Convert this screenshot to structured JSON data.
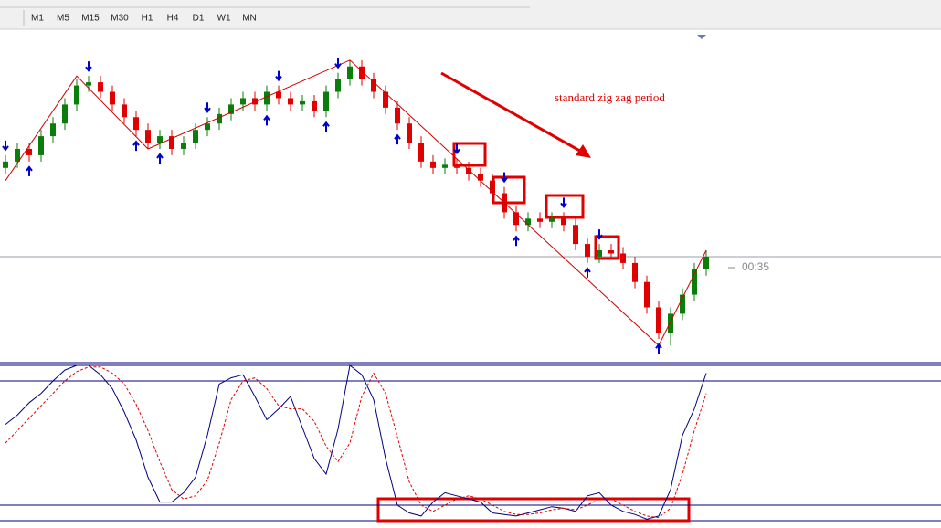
{
  "toolbar": {
    "timeframes": [
      "M1",
      "M5",
      "M15",
      "M30",
      "H1",
      "H4",
      "D1",
      "W1",
      "MN"
    ]
  },
  "annotation": "standard zig zag period",
  "timer": "00:35",
  "chart_data": [
    {
      "type": "candlestick",
      "ylim": [
        0,
        100
      ],
      "up_color": "#0b7d0b",
      "down_color": "#e10000",
      "open": [
        60,
        62,
        66,
        64,
        70,
        74,
        80,
        86,
        87,
        84,
        80,
        76,
        72,
        68,
        70,
        66,
        68,
        72,
        74,
        77,
        80,
        82,
        80,
        84,
        82,
        80,
        81,
        78,
        84,
        88,
        92,
        88,
        84,
        79,
        74,
        68,
        62,
        60,
        61,
        60,
        58,
        56,
        52,
        46,
        42,
        44,
        43,
        44,
        42,
        36,
        32,
        34,
        33,
        30,
        24,
        16,
        8,
        14,
        20,
        28
      ],
      "high": [
        64,
        68,
        68,
        72,
        76,
        82,
        88,
        89,
        89,
        86,
        82,
        78,
        74,
        72,
        72,
        70,
        74,
        76,
        79,
        82,
        84,
        84,
        86,
        86,
        84,
        83,
        83,
        86,
        90,
        94,
        94,
        90,
        86,
        81,
        76,
        70,
        64,
        63,
        63,
        62,
        60,
        58,
        54,
        48,
        46,
        46,
        46,
        46,
        44,
        38,
        36,
        36,
        35,
        32,
        26,
        18,
        16,
        22,
        30,
        34
      ],
      "low": [
        58,
        60,
        62,
        62,
        68,
        72,
        78,
        84,
        82,
        78,
        74,
        70,
        66,
        66,
        64,
        64,
        66,
        70,
        72,
        75,
        78,
        78,
        78,
        80,
        78,
        78,
        76,
        76,
        82,
        86,
        86,
        82,
        77,
        72,
        66,
        60,
        58,
        58,
        58,
        56,
        54,
        50,
        44,
        40,
        40,
        41,
        41,
        40,
        34,
        30,
        30,
        31,
        28,
        22,
        14,
        6,
        4,
        12,
        18,
        26
      ],
      "close": [
        62,
        66,
        64,
        70,
        74,
        80,
        86,
        87,
        84,
        80,
        76,
        72,
        68,
        70,
        66,
        68,
        72,
        74,
        77,
        80,
        82,
        80,
        84,
        82,
        80,
        81,
        78,
        84,
        88,
        92,
        88,
        84,
        79,
        74,
        68,
        62,
        60,
        61,
        60,
        58,
        56,
        52,
        46,
        42,
        44,
        43,
        44,
        42,
        36,
        32,
        34,
        33,
        30,
        24,
        16,
        8,
        14,
        20,
        28,
        32
      ],
      "zigzag": {
        "color": "#d00000",
        "x": [
          0,
          6,
          12,
          29,
          55,
          59
        ],
        "values": [
          56,
          89,
          66,
          94,
          4,
          34
        ]
      },
      "signals": {
        "color": "#0000cc",
        "down": [
          0,
          7,
          17,
          23,
          28,
          38,
          42,
          47,
          50
        ],
        "up": [
          2,
          11,
          13,
          22,
          27,
          33,
          43,
          49,
          55
        ]
      }
    },
    {
      "type": "stochastic",
      "ylim": [
        0,
        100
      ],
      "levels": [
        90,
        10
      ],
      "series": [
        {
          "color": "#000080",
          "values": [
            62,
            68,
            76,
            82,
            90,
            97,
            100,
            100,
            94,
            85,
            70,
            52,
            28,
            12,
            12,
            18,
            28,
            55,
            88,
            92,
            94,
            80,
            65,
            72,
            80,
            60,
            40,
            30,
            59,
            100,
            94,
            78,
            40,
            10,
            5,
            3,
            12,
            18,
            16,
            14,
            12,
            5,
            4,
            3,
            5,
            7,
            9,
            8,
            6,
            16,
            18,
            10,
            6,
            4,
            1,
            3,
            20,
            55,
            72,
            95
          ]
        },
        {
          "color": "#e00000",
          "values": [
            50,
            58,
            66,
            74,
            82,
            90,
            96,
            99,
            99,
            95,
            88,
            75,
            58,
            38,
            20,
            14,
            16,
            26,
            50,
            78,
            90,
            92,
            85,
            74,
            72,
            72,
            64,
            48,
            38,
            50,
            80,
            95,
            82,
            54,
            25,
            10,
            6,
            10,
            14,
            16,
            14,
            10,
            6,
            4,
            4,
            5,
            7,
            8,
            7,
            10,
            14,
            14,
            10,
            6,
            3,
            2,
            8,
            30,
            58,
            82
          ]
        }
      ]
    }
  ]
}
